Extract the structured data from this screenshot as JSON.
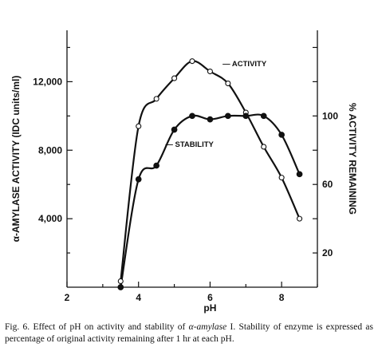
{
  "chart_data": {
    "type": "line",
    "xlabel": "pH",
    "ylabel_left": "α-AMYLASE ACTIVITY (IDC units/ml)",
    "ylabel_right": "% ACTIVITY REMAINING",
    "xlim": [
      2,
      9
    ],
    "ylim_left": [
      0,
      15000
    ],
    "ylim_right": [
      0,
      150
    ],
    "x_ticks": [
      2,
      4,
      6,
      8
    ],
    "x_tick_labels": [
      "2",
      "4",
      "6",
      "8"
    ],
    "y_left_ticks": [
      4000,
      8000,
      12000
    ],
    "y_left_tick_labels": [
      "4,000",
      "8,000",
      "12,000"
    ],
    "y_right_ticks": [
      20,
      60,
      100
    ],
    "y_right_tick_labels": [
      "20",
      "60",
      "100"
    ],
    "grid": false,
    "series": [
      {
        "name": "ACTIVITY",
        "label": "— ACTIVITY",
        "axis": "left",
        "marker": "open-circle",
        "x": [
          3.5,
          4.0,
          4.5,
          5.0,
          5.5,
          6.0,
          6.5,
          7.0,
          7.5,
          8.0,
          8.5
        ],
        "y": [
          350,
          9400,
          11000,
          12200,
          13200,
          12600,
          11900,
          10200,
          8200,
          6400,
          4000
        ]
      },
      {
        "name": "STABILITY",
        "label": "— STABILITY",
        "axis": "right",
        "marker": "filled-circle",
        "x": [
          3.5,
          4.0,
          4.5,
          5.0,
          5.5,
          6.0,
          6.5,
          7.0,
          7.5,
          8.0,
          8.5
        ],
        "y": [
          0,
          63,
          71,
          92,
          100,
          98,
          100,
          100,
          100,
          89,
          66
        ]
      }
    ]
  },
  "caption": {
    "prefix": "Fig. 6.  Effect of pH on activity and stability of ",
    "enzyme": "α-amylase",
    "suffix": " I. Stability of enzyme is expressed as percentage of original activity remaining after 1 hr at each pH."
  }
}
